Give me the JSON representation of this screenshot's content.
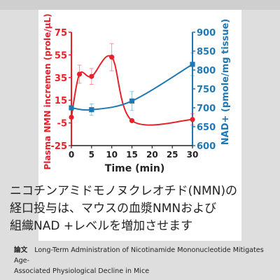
{
  "chart_data": {
    "type": "line",
    "title": "",
    "xlabel": "Time (min)",
    "ylabel_left": "Plasma NMN incremen (prole/μL)",
    "ylabel_right": "NAD+ (pmole/mg tissue)",
    "x_ticks": [
      0,
      5,
      10,
      15,
      20,
      25,
      30
    ],
    "y_left_ticks": [
      -25,
      -5,
      15,
      35,
      55,
      75
    ],
    "y_right_ticks": [
      600,
      650,
      700,
      750,
      800,
      850,
      900
    ],
    "xlim": [
      0,
      30
    ],
    "ylim_left": [
      -25,
      75
    ],
    "ylim_right": [
      600,
      900
    ],
    "colors": {
      "left_series": "#e8202a",
      "right_series": "#1f78b4",
      "left_axis": "#e8202a",
      "right_axis": "#1f78b4"
    },
    "series": [
      {
        "name": "",
        "axis": "left",
        "shape": "circle",
        "x": [
          0,
          2,
          5,
          10,
          15,
          30
        ],
        "y": [
          0,
          38,
          36,
          53,
          -3,
          -2
        ],
        "err": [
          0,
          8,
          7,
          12,
          0,
          5
        ]
      },
      {
        "name": "",
        "axis": "right",
        "shape": "square",
        "x": [
          0,
          5,
          15,
          30
        ],
        "y": [
          700,
          695,
          718,
          815
        ],
        "err": [
          0,
          15,
          25,
          30
        ]
      }
    ]
  },
  "caption": {
    "lines": [
      "ニコチンアミドモノヌクレオチド(NMN)の",
      "経口投与は、マウスの血漿NMNおよび",
      "組織NAD +レベルを増加させます"
    ]
  },
  "footer": {
    "tag": "論文",
    "line1": "Long-Term Administration of Nicotinamide Mononucleotide Mitigates Age-",
    "line2": "Associated Physiological Decline in Mice"
  }
}
